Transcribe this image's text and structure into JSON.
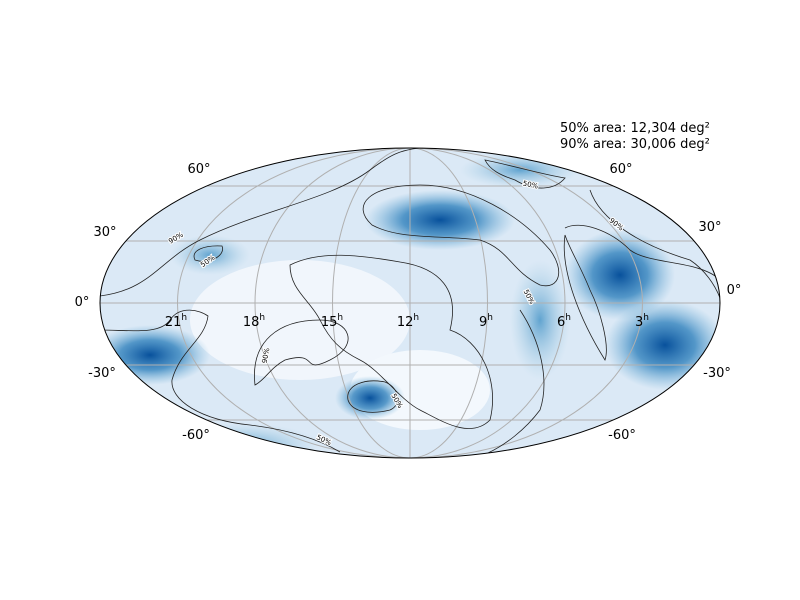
{
  "annotations": {
    "area_50": "50% area: 12,304 deg²",
    "area_90": "90% area: 30,006 deg²"
  },
  "ra_labels": [
    {
      "hour": "21",
      "unit": "h"
    },
    {
      "hour": "18",
      "unit": "h"
    },
    {
      "hour": "15",
      "unit": "h"
    },
    {
      "hour": "12",
      "unit": "h"
    },
    {
      "hour": "9",
      "unit": "h"
    },
    {
      "hour": "6",
      "unit": "h"
    },
    {
      "hour": "3",
      "unit": "h"
    }
  ],
  "dec_labels_left": [
    "60°",
    "30°",
    "0°",
    "-30°",
    "-60°"
  ],
  "dec_labels_right": [
    "60°",
    "30°",
    "0°",
    "-30°",
    "-60°"
  ],
  "contour_labels": [
    "90%",
    "50%",
    "50%",
    "90%",
    "50%",
    "90%",
    "50%",
    "50%"
  ]
}
